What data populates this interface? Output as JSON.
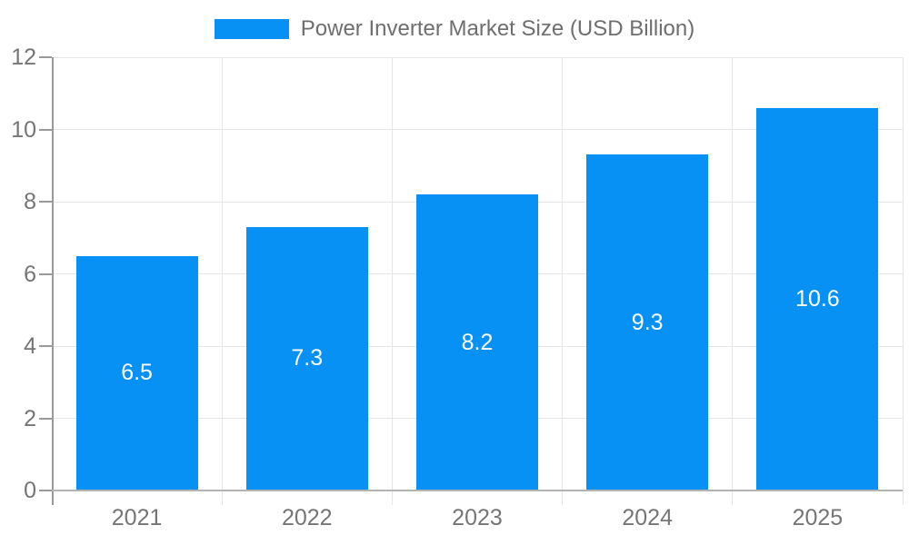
{
  "chart_data": {
    "type": "bar",
    "title": "Power Inverter Market Size (USD Billion)",
    "categories": [
      "2021",
      "2022",
      "2023",
      "2024",
      "2025"
    ],
    "values": [
      6.5,
      7.3,
      8.2,
      9.3,
      10.6
    ],
    "bar_labels": [
      "6.5",
      "7.3",
      "8.2",
      "9.3",
      "10.6"
    ],
    "xlabel": "",
    "ylabel": "",
    "ylim": [
      0,
      12
    ],
    "yticks": [
      0,
      2,
      4,
      6,
      8,
      10,
      12
    ],
    "ytick_labels": [
      "0",
      "2",
      "4",
      "6",
      "8",
      "10",
      "12"
    ],
    "grid": true,
    "legend_position": "top-center",
    "bar_label_position": "inside-center",
    "colors": {
      "bar": "#0791f5",
      "bar_label": "#ffffff",
      "gridline": "#e6e6e6",
      "separator": "#e6e6e6",
      "axis": "#999999",
      "baseline": "#b3b3b3",
      "tick_label": "#757575",
      "legend_text": "#6e6e6e",
      "background": "#ffffff"
    }
  }
}
